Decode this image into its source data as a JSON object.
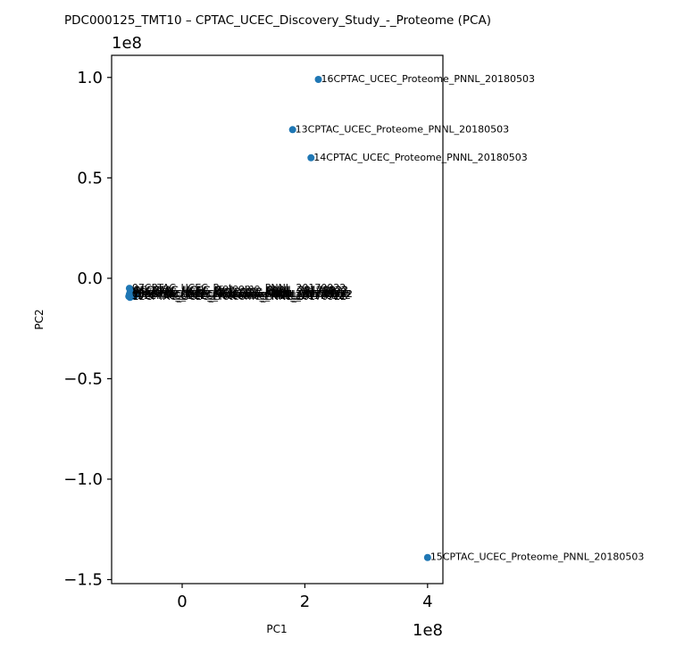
{
  "chart_data": {
    "type": "scatter",
    "title": "PDC000125_TMT10 – CPTAC_UCEC_Discovery_Study_-_Proteome (PCA)",
    "xlabel": "PC1",
    "ylabel": "PC2",
    "x_scale_label": "1e8",
    "y_scale_label": "1e8",
    "xlim": [
      -1.15,
      4.25
    ],
    "ylim": [
      -1.52,
      1.11
    ],
    "x_ticks": [
      {
        "value": 0,
        "label": "0"
      },
      {
        "value": 2,
        "label": "2"
      },
      {
        "value": 4,
        "label": "4"
      }
    ],
    "y_ticks": [
      {
        "value": 1.0,
        "label": "1.0"
      },
      {
        "value": 0.5,
        "label": "0.5"
      },
      {
        "value": 0.0,
        "label": "0.0"
      },
      {
        "value": -0.5,
        "label": "−0.5"
      },
      {
        "value": -1.0,
        "label": "−1.0"
      },
      {
        "value": -1.5,
        "label": "−1.5"
      }
    ],
    "grid": false,
    "legend": "none",
    "point_color": "#1f77b4",
    "series": [
      {
        "points": [
          {
            "x": 2.22,
            "y": 0.99,
            "label": "16CPTAC_UCEC_Proteome_PNNL_20180503"
          },
          {
            "x": 1.8,
            "y": 0.74,
            "label": "13CPTAC_UCEC_Proteome_PNNL_20180503"
          },
          {
            "x": 2.1,
            "y": 0.6,
            "label": "14CPTAC_UCEC_Proteome_PNNL_20180503"
          },
          {
            "x": 4.0,
            "y": -1.39,
            "label": "15CPTAC_UCEC_Proteome_PNNL_20180503"
          },
          {
            "x": -0.86,
            "y": -0.05,
            "label": "07CPTAC_UCEC_Proteome_PNNL_20170922"
          },
          {
            "x": -0.84,
            "y": -0.06,
            "label": "01CPTAC_UCEC_Proteome_PNNL_20170922"
          },
          {
            "x": -0.82,
            "y": -0.06,
            "label": "06CPTAC_UCEC_Proteome_PNNL_20170922"
          },
          {
            "x": -0.85,
            "y": -0.07,
            "label": "05CPTAC_UCEC_Proteome_PNNL_20170922"
          },
          {
            "x": -0.86,
            "y": -0.08,
            "label": "03CPTAC_UCEC_Proteome_PNNL_20170922"
          },
          {
            "x": -0.83,
            "y": -0.08,
            "label": "02CPTAC_UCEC_Proteome_PNNL_20170922"
          },
          {
            "x": -0.8,
            "y": -0.08,
            "label": "04CPTAC_UCEC_Proteome_PNNL_20170922"
          },
          {
            "x": -0.77,
            "y": -0.08,
            "label": "08CPTAC_UCEC_Proteome_PNNL_20170922"
          },
          {
            "x": -0.75,
            "y": -0.08,
            "label": "09CPTAC_UCEC_Proteome_PNNL_20170922"
          },
          {
            "x": -0.87,
            "y": -0.09,
            "label": "10CPTAC_UCEC_Proteome_PNNL_20170922"
          },
          {
            "x": -0.78,
            "y": -0.09,
            "label": "11CPTAC_UCEC_Proteome_PNNL_20170922"
          },
          {
            "x": -0.85,
            "y": -0.095,
            "label": "12CPTAC_UCEC_Proteome_PNNL_20170922"
          }
        ]
      }
    ]
  }
}
